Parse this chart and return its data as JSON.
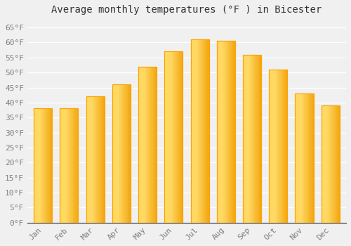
{
  "title": "Average monthly temperatures (°F ) in Bicester",
  "months": [
    "Jan",
    "Feb",
    "Mar",
    "Apr",
    "May",
    "Jun",
    "Jul",
    "Aug",
    "Sep",
    "Oct",
    "Nov",
    "Dec"
  ],
  "values": [
    38,
    38,
    42,
    46,
    52,
    57,
    61,
    60.5,
    56,
    51,
    43,
    39
  ],
  "bar_color_main": "#FFBE00",
  "bar_color_light": "#FFD966",
  "bar_color_dark": "#FFA000",
  "ylim": [
    0,
    68
  ],
  "yticks": [
    0,
    5,
    10,
    15,
    20,
    25,
    30,
    35,
    40,
    45,
    50,
    55,
    60,
    65
  ],
  "ytick_labels": [
    "0°F",
    "5°F",
    "10°F",
    "15°F",
    "20°F",
    "25°F",
    "30°F",
    "35°F",
    "40°F",
    "45°F",
    "50°F",
    "55°F",
    "60°F",
    "65°F"
  ],
  "title_fontsize": 10,
  "tick_fontsize": 8,
  "background_color": "#f0f0f0",
  "plot_bg_color": "#f0f0f0",
  "grid_color": "#ffffff",
  "tick_color": "#808080",
  "spine_color": "#333333",
  "font_family": "monospace",
  "bar_width": 0.7
}
